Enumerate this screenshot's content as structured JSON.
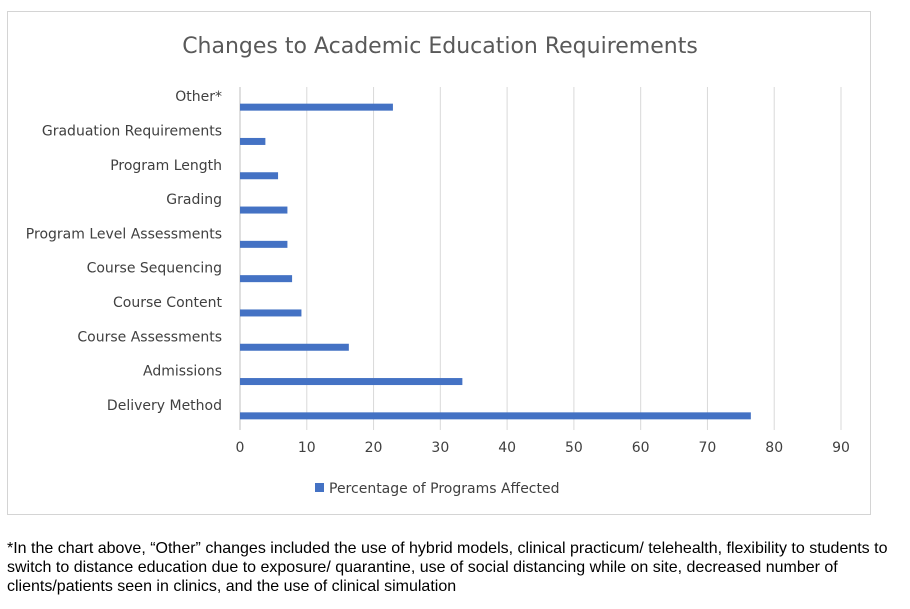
{
  "chart_data": {
    "type": "bar",
    "orientation": "horizontal",
    "title": "Changes to Academic Education Requirements",
    "categories": [
      "Delivery Method",
      "Admissions",
      "Course Assessments",
      "Course Content",
      "Course Sequencing",
      "Program Level Assessments",
      "Grading",
      "Program Length",
      "Graduation Requirements",
      "Other*"
    ],
    "series": [
      {
        "name": "Percentage of Programs Affected",
        "values": [
          76.5,
          33.3,
          16.3,
          9.2,
          7.8,
          7.1,
          7.1,
          5.7,
          3.8,
          22.9
        ],
        "color": "#4472c4"
      }
    ],
    "xlim": [
      0,
      90
    ],
    "xticks": [
      "0",
      "10",
      "20",
      "30",
      "40",
      "50",
      "60",
      "70",
      "80",
      "90"
    ],
    "xlabel": "",
    "ylabel": "",
    "grid": true,
    "legend_position": "bottom"
  },
  "footnote": "*In the chart above, “Other” changes included the use of hybrid models, clinical practicum/ telehealth, flexibility to students to switch to distance education due to exposure/ quarantine, use of social distancing while on site, decreased number of clients/patients seen in clinics, and the use of clinical simulation"
}
